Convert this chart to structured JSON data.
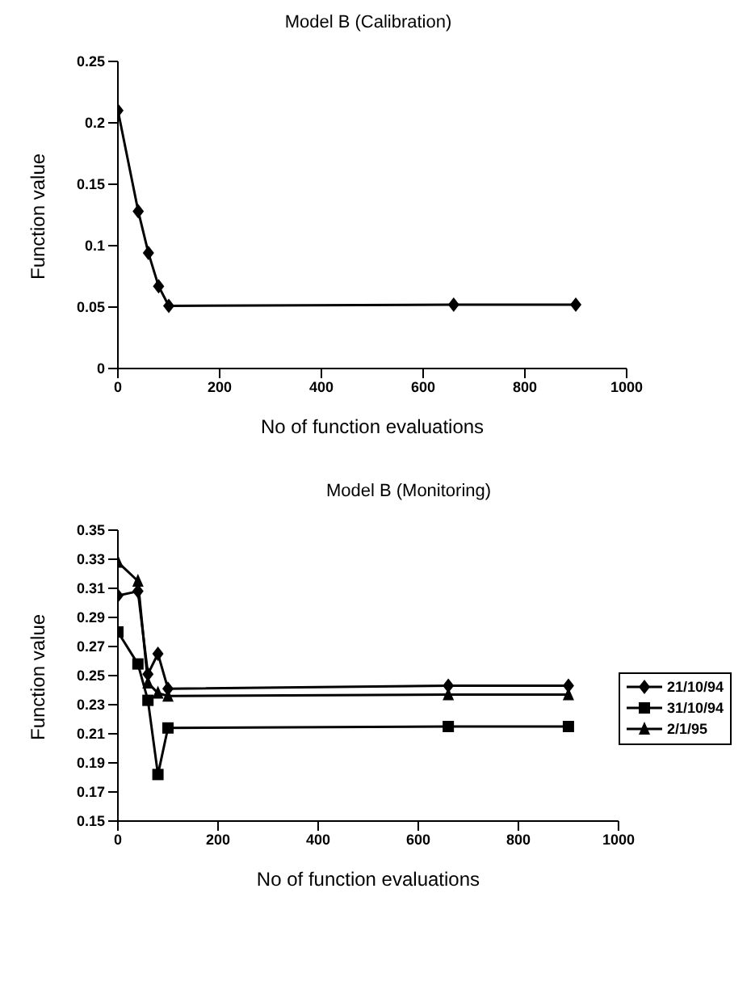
{
  "chart_data": [
    {
      "type": "line",
      "title": "Model B (Calibration)",
      "xlabel": "No of function evaluations",
      "ylabel": "Function value",
      "x": [
        0,
        40,
        60,
        80,
        100,
        660,
        900
      ],
      "series": [
        {
          "color": "#000000",
          "marker": "diamond",
          "values": [
            0.21,
            0.128,
            0.094,
            0.067,
            0.051,
            0.052,
            0.052
          ]
        }
      ],
      "xlim": [
        0,
        1000
      ],
      "xticks": [
        0,
        200,
        400,
        600,
        800,
        1000
      ],
      "ylim": [
        0,
        0.25
      ],
      "yticks": [
        0,
        0.05,
        0.1,
        0.15,
        0.2,
        0.25
      ],
      "grid": false,
      "legend": false
    },
    {
      "type": "line",
      "title": "Model B (Monitoring)",
      "xlabel": "No of function evaluations",
      "ylabel": "Function value",
      "x": [
        0,
        40,
        60,
        80,
        100,
        660,
        900
      ],
      "series": [
        {
          "name": "21/10/94",
          "color": "#000000",
          "marker": "diamond",
          "values": [
            0.305,
            0.308,
            0.251,
            0.265,
            0.241,
            0.243,
            0.243
          ]
        },
        {
          "name": "31/10/94",
          "color": "#000000",
          "marker": "square",
          "values": [
            0.28,
            0.258,
            0.233,
            0.182,
            0.214,
            0.215,
            0.215
          ]
        },
        {
          "name": "2/1/95",
          "color": "#000000",
          "marker": "triangle",
          "values": [
            0.328,
            0.315,
            0.245,
            0.238,
            0.236,
            0.237,
            0.237
          ]
        }
      ],
      "xlim": [
        0,
        1000
      ],
      "xticks": [
        0,
        200,
        400,
        600,
        800,
        1000
      ],
      "ylim": [
        0.15,
        0.35
      ],
      "yticks": [
        0.15,
        0.17,
        0.19,
        0.21,
        0.23,
        0.25,
        0.27,
        0.29,
        0.31,
        0.33,
        0.35
      ],
      "grid": false,
      "legend": "right"
    }
  ]
}
